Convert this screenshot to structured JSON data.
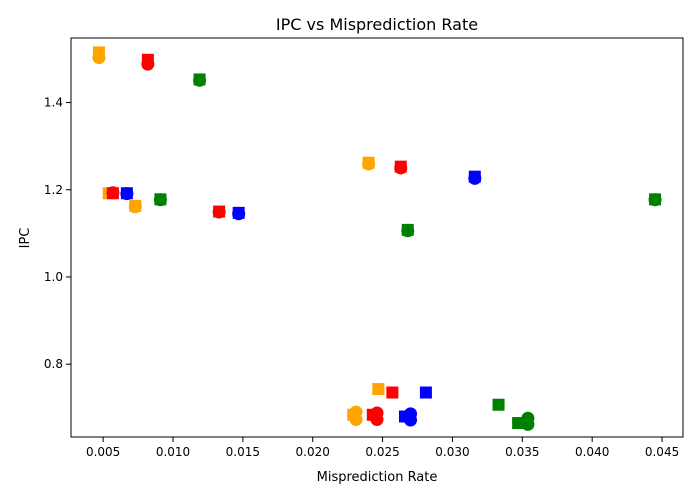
{
  "chart_data": {
    "type": "scatter",
    "title": "IPC vs Misprediction Rate",
    "xlabel": "Misprediction Rate",
    "ylabel": "IPC",
    "xlim": [
      0.0027,
      0.0465
    ],
    "ylim": [
      0.633,
      1.548
    ],
    "xticks": [
      "0.005",
      "0.010",
      "0.015",
      "0.020",
      "0.025",
      "0.030",
      "0.035",
      "0.040",
      "0.045"
    ],
    "xtick_values": [
      0.005,
      0.01,
      0.015,
      0.02,
      0.025,
      0.03,
      0.035,
      0.04,
      0.045
    ],
    "yticks": [
      "0.8",
      "1.0",
      "1.2",
      "1.4"
    ],
    "ytick_values": [
      0.8,
      1.0,
      1.2,
      1.4
    ],
    "grid": false,
    "legend": "none",
    "colors": {
      "orange": "#ffa500",
      "red": "#ff0000",
      "green": "#008000",
      "blue": "#0000ff"
    },
    "points": [
      {
        "x": 0.0047,
        "y": 1.515,
        "color": "orange",
        "marker": "square"
      },
      {
        "x": 0.0047,
        "y": 1.503,
        "color": "orange",
        "marker": "circle"
      },
      {
        "x": 0.0082,
        "y": 1.498,
        "color": "red",
        "marker": "square"
      },
      {
        "x": 0.0082,
        "y": 1.488,
        "color": "red",
        "marker": "circle"
      },
      {
        "x": 0.0119,
        "y": 1.453,
        "color": "green",
        "marker": "square"
      },
      {
        "x": 0.0119,
        "y": 1.451,
        "color": "green",
        "marker": "circle"
      },
      {
        "x": 0.0054,
        "y": 1.192,
        "color": "orange",
        "marker": "square"
      },
      {
        "x": 0.0057,
        "y": 1.193,
        "color": "red",
        "marker": "circle"
      },
      {
        "x": 0.0057,
        "y": 1.192,
        "color": "red",
        "marker": "square"
      },
      {
        "x": 0.0067,
        "y": 1.192,
        "color": "blue",
        "marker": "square"
      },
      {
        "x": 0.0067,
        "y": 1.191,
        "color": "blue",
        "marker": "circle"
      },
      {
        "x": 0.0073,
        "y": 1.163,
        "color": "orange",
        "marker": "square"
      },
      {
        "x": 0.0073,
        "y": 1.161,
        "color": "orange",
        "marker": "circle"
      },
      {
        "x": 0.0091,
        "y": 1.178,
        "color": "green",
        "marker": "square"
      },
      {
        "x": 0.0091,
        "y": 1.177,
        "color": "green",
        "marker": "circle"
      },
      {
        "x": 0.0133,
        "y": 1.15,
        "color": "red",
        "marker": "square"
      },
      {
        "x": 0.0133,
        "y": 1.149,
        "color": "red",
        "marker": "circle"
      },
      {
        "x": 0.0147,
        "y": 1.147,
        "color": "blue",
        "marker": "square"
      },
      {
        "x": 0.0147,
        "y": 1.145,
        "color": "blue",
        "marker": "circle"
      },
      {
        "x": 0.024,
        "y": 1.262,
        "color": "orange",
        "marker": "square"
      },
      {
        "x": 0.024,
        "y": 1.259,
        "color": "orange",
        "marker": "circle"
      },
      {
        "x": 0.0263,
        "y": 1.253,
        "color": "red",
        "marker": "square"
      },
      {
        "x": 0.0263,
        "y": 1.25,
        "color": "red",
        "marker": "circle"
      },
      {
        "x": 0.0268,
        "y": 1.108,
        "color": "green",
        "marker": "square"
      },
      {
        "x": 0.0268,
        "y": 1.106,
        "color": "green",
        "marker": "circle"
      },
      {
        "x": 0.0316,
        "y": 1.23,
        "color": "blue",
        "marker": "square"
      },
      {
        "x": 0.0316,
        "y": 1.226,
        "color": "blue",
        "marker": "circle"
      },
      {
        "x": 0.0445,
        "y": 1.178,
        "color": "green",
        "marker": "square"
      },
      {
        "x": 0.0445,
        "y": 1.177,
        "color": "green",
        "marker": "circle"
      },
      {
        "x": 0.0229,
        "y": 0.684,
        "color": "orange",
        "marker": "square"
      },
      {
        "x": 0.0231,
        "y": 0.69,
        "color": "orange",
        "marker": "circle"
      },
      {
        "x": 0.0231,
        "y": 0.673,
        "color": "orange",
        "marker": "circle"
      },
      {
        "x": 0.0247,
        "y": 0.743,
        "color": "orange",
        "marker": "square"
      },
      {
        "x": 0.0243,
        "y": 0.684,
        "color": "red",
        "marker": "square"
      },
      {
        "x": 0.0246,
        "y": 0.688,
        "color": "red",
        "marker": "circle"
      },
      {
        "x": 0.0246,
        "y": 0.673,
        "color": "red",
        "marker": "circle"
      },
      {
        "x": 0.0257,
        "y": 0.735,
        "color": "red",
        "marker": "square"
      },
      {
        "x": 0.0266,
        "y": 0.68,
        "color": "blue",
        "marker": "square"
      },
      {
        "x": 0.027,
        "y": 0.686,
        "color": "blue",
        "marker": "circle"
      },
      {
        "x": 0.027,
        "y": 0.672,
        "color": "blue",
        "marker": "circle"
      },
      {
        "x": 0.0281,
        "y": 0.735,
        "color": "blue",
        "marker": "square"
      },
      {
        "x": 0.0333,
        "y": 0.707,
        "color": "green",
        "marker": "square"
      },
      {
        "x": 0.0347,
        "y": 0.665,
        "color": "green",
        "marker": "square"
      },
      {
        "x": 0.0354,
        "y": 0.676,
        "color": "green",
        "marker": "circle"
      },
      {
        "x": 0.0354,
        "y": 0.662,
        "color": "green",
        "marker": "circle"
      }
    ]
  }
}
